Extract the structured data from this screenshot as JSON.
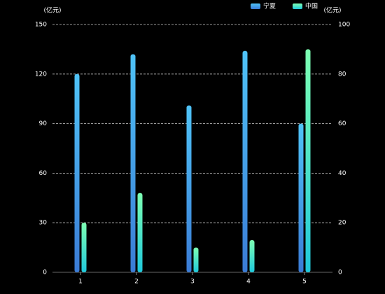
{
  "chart_data": {
    "type": "bar",
    "y_label": "(亿元)",
    "y2_label": "(亿元)",
    "categories": [
      "1",
      "2",
      "3",
      "4",
      "5"
    ],
    "series": [
      {
        "name": "宁夏",
        "color": "#4fc3f7",
        "values": [
          120,
          132,
          101,
          134,
          90
        ]
      },
      {
        "name": "中国",
        "color": "#7dffb2",
        "axis": "y2",
        "values": [
          20,
          32,
          10,
          13,
          90
        ]
      }
    ],
    "ylim": [
      0,
      150
    ],
    "yticks": [
      0,
      30,
      60,
      90,
      120,
      150
    ],
    "y2lim": [
      0,
      100
    ],
    "y2ticks": [
      0,
      20,
      40,
      60,
      80,
      100
    ],
    "grid": true
  }
}
